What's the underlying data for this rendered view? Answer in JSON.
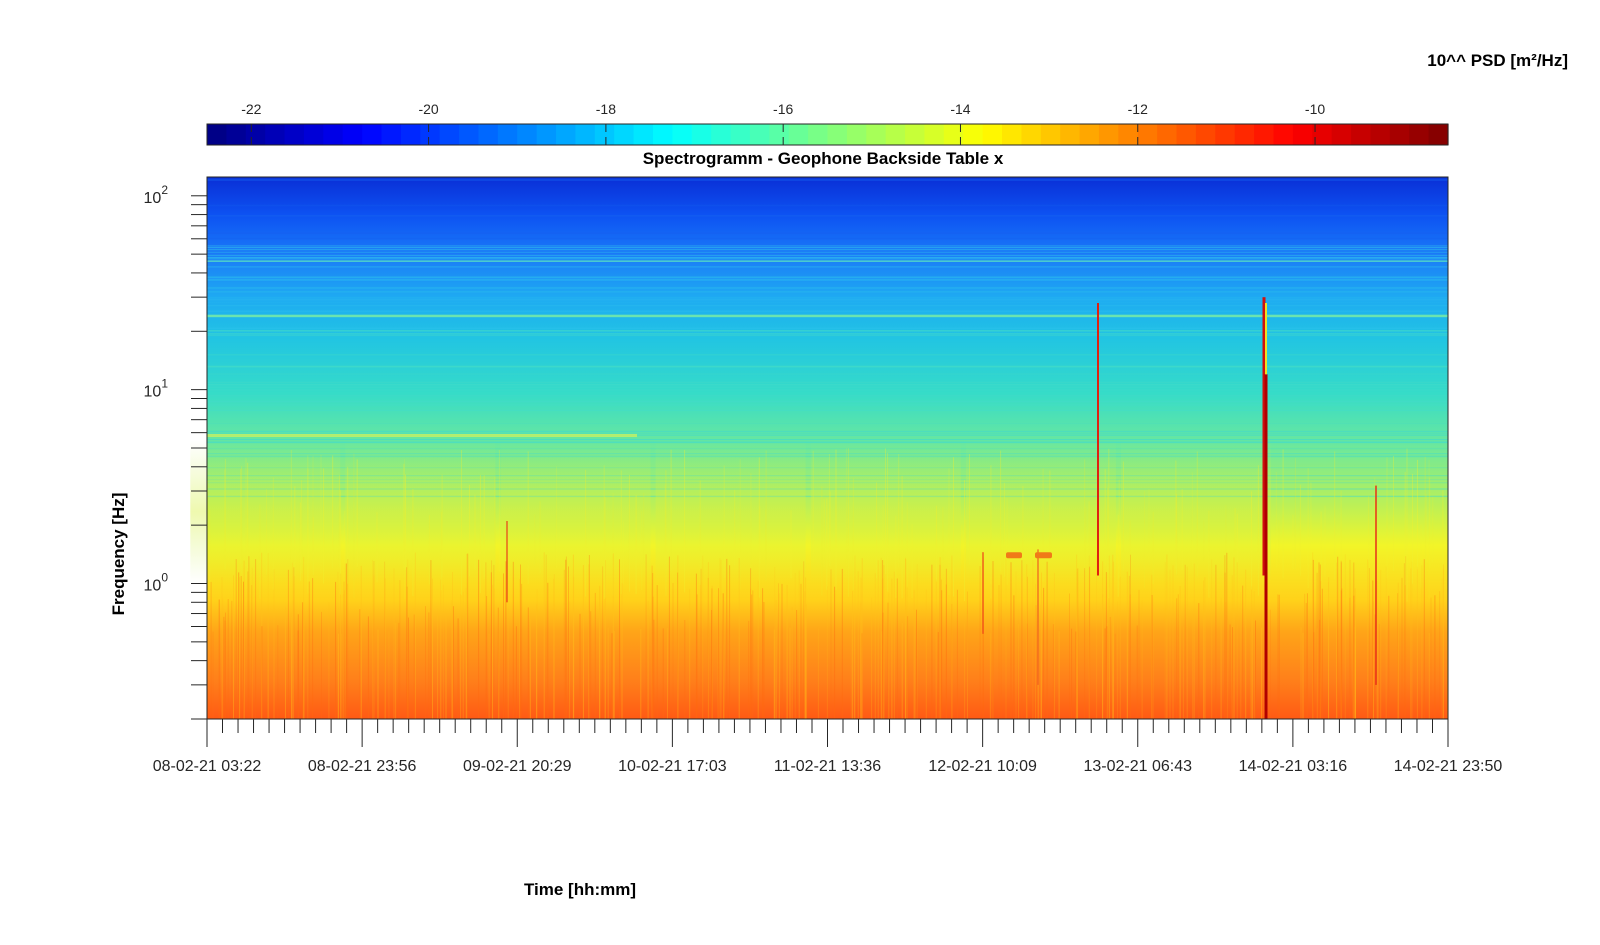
{
  "chart_data": {
    "type": "heatmap",
    "title": "Spectrogramm - Geophone Backside Table x",
    "xlabel": "Time [hh:mm]",
    "ylabel": "Frequency [Hz]",
    "colorbar_label": "10^^ PSD [m²/Hz]",
    "colormap": "jet",
    "colorbar_ticks": [
      "-22",
      "-20",
      "-18",
      "-16",
      "-14",
      "-12",
      "-10"
    ],
    "colorbar_range": [
      -22.5,
      -8.5
    ],
    "x_tick_labels": [
      "08-02-21 03:22",
      "08-02-21 23:56",
      "09-02-21 20:29",
      "10-02-21 17:03",
      "11-02-21 13:36",
      "12-02-21 10:09",
      "13-02-21 06:43",
      "14-02-21 03:16",
      "14-02-21 23:50"
    ],
    "y_scale": "log",
    "ylim": [
      0.2,
      125
    ],
    "y_tick_labels": [
      {
        "base": "10",
        "exp": "0",
        "value": 1
      },
      {
        "base": "10",
        "exp": "1",
        "value": 10
      },
      {
        "base": "10",
        "exp": "2",
        "value": 100
      }
    ],
    "psd_profile": [
      {
        "freq_hz": 0.2,
        "log10_psd": -10.6
      },
      {
        "freq_hz": 0.5,
        "log10_psd": -11.8
      },
      {
        "freq_hz": 0.7,
        "log10_psd": -13.6
      },
      {
        "freq_hz": 1.0,
        "log10_psd": -14.5
      },
      {
        "freq_hz": 3.0,
        "log10_psd": -15.6
      },
      {
        "freq_hz": 10,
        "log10_psd": -16.9
      },
      {
        "freq_hz": 30,
        "log10_psd": -17.9
      },
      {
        "freq_hz": 60,
        "log10_psd": -19.0
      },
      {
        "freq_hz": 125,
        "log10_psd": -20.5
      }
    ]
  }
}
